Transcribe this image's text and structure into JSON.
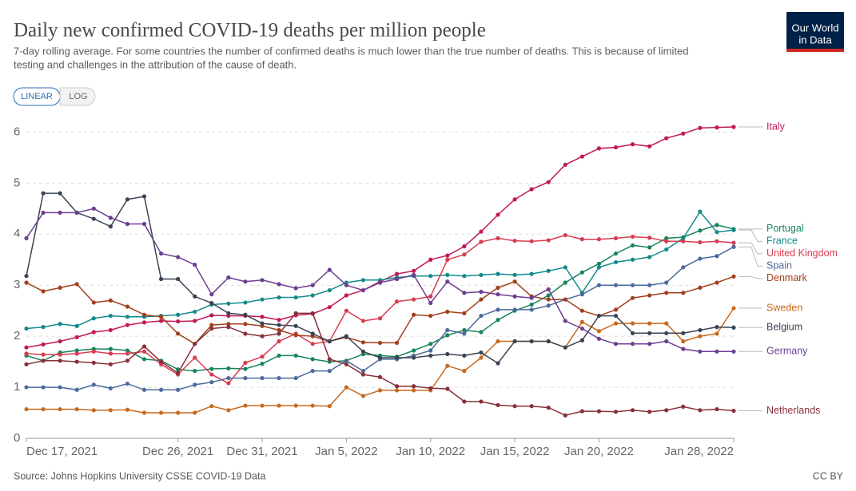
{
  "chart_data": {
    "type": "line",
    "title": "Daily new confirmed COVID-19 deaths per million people",
    "subtitle": [
      "7-day rolling average. For some countries the number of confirmed deaths is much lower than the true number of deaths. This is because of limited",
      "testing and challenges in the attribution of the cause of death."
    ],
    "buttons": [
      "LINEAR",
      "LOG"
    ],
    "logo": [
      "Our World",
      "in Data"
    ],
    "source": "Source: Johns Hopkins University CSSE COVID-19 Data",
    "license": "CC BY",
    "x": [
      "2021-12-17",
      "2021-12-18",
      "2021-12-19",
      "2021-12-20",
      "2021-12-21",
      "2021-12-22",
      "2021-12-23",
      "2021-12-24",
      "2021-12-25",
      "2021-12-26",
      "2021-12-27",
      "2021-12-28",
      "2021-12-29",
      "2021-12-30",
      "2021-12-31",
      "2022-01-01",
      "2022-01-02",
      "2022-01-03",
      "2022-01-04",
      "2022-01-05",
      "2022-01-06",
      "2022-01-07",
      "2022-01-08",
      "2022-01-09",
      "2022-01-10",
      "2022-01-11",
      "2022-01-12",
      "2022-01-13",
      "2022-01-14",
      "2022-01-15",
      "2022-01-16",
      "2022-01-17",
      "2022-01-18",
      "2022-01-19",
      "2022-01-20",
      "2022-01-21",
      "2022-01-22",
      "2022-01-23",
      "2022-01-24",
      "2022-01-25",
      "2022-01-26",
      "2022-01-27",
      "2022-01-28"
    ],
    "xlim": [
      "2021-12-17",
      "2022-01-28"
    ],
    "xticks": [
      {
        "value": "2021-12-17",
        "label": "Dec 17, 2021"
      },
      {
        "value": "2021-12-26",
        "label": "Dec 26, 2021"
      },
      {
        "value": "2021-12-31",
        "label": "Dec 31, 2021"
      },
      {
        "value": "2022-01-05",
        "label": "Jan 5, 2022"
      },
      {
        "value": "2022-01-10",
        "label": "Jan 10, 2022"
      },
      {
        "value": "2022-01-15",
        "label": "Jan 15, 2022"
      },
      {
        "value": "2022-01-20",
        "label": "Jan 20, 2022"
      },
      {
        "value": "2022-01-28",
        "label": "Jan 28, 2022"
      }
    ],
    "ylim": [
      0,
      6.1
    ],
    "yticks": [
      0,
      1,
      2,
      3,
      4,
      5,
      6
    ],
    "grid": true,
    "series": [
      {
        "name": "Italy",
        "color": "#c2185b",
        "values": [
          1.78,
          1.84,
          1.9,
          1.98,
          2.08,
          2.12,
          2.22,
          2.27,
          2.3,
          2.29,
          2.3,
          2.41,
          2.4,
          2.4,
          2.38,
          2.32,
          2.41,
          2.44,
          2.57,
          2.8,
          2.9,
          3.07,
          3.22,
          3.28,
          3.5,
          3.58,
          3.76,
          4.05,
          4.38,
          4.68,
          4.88,
          5.02,
          5.36,
          5.52,
          5.68,
          5.7,
          5.76,
          5.72,
          5.88,
          5.97,
          6.08,
          6.09,
          6.1
        ]
      },
      {
        "name": "Portugal",
        "color": "#18845a",
        "values": [
          1.62,
          1.52,
          1.68,
          1.72,
          1.75,
          1.75,
          1.72,
          1.55,
          1.52,
          1.35,
          1.32,
          1.36,
          1.37,
          1.36,
          1.46,
          1.62,
          1.62,
          1.55,
          1.5,
          1.52,
          1.65,
          1.62,
          1.6,
          1.72,
          1.85,
          2.02,
          2.12,
          2.08,
          2.32,
          2.5,
          2.62,
          2.8,
          3.05,
          3.25,
          3.42,
          3.62,
          3.78,
          3.74,
          3.92,
          3.94,
          4.07,
          4.18,
          4.1
        ]
      },
      {
        "name": "France",
        "color": "#138a8a",
        "values": [
          2.15,
          2.18,
          2.24,
          2.2,
          2.35,
          2.4,
          2.38,
          2.38,
          2.4,
          2.42,
          2.48,
          2.62,
          2.64,
          2.66,
          2.72,
          2.76,
          2.76,
          2.8,
          2.9,
          3.05,
          3.1,
          3.1,
          3.15,
          3.18,
          3.18,
          3.2,
          3.18,
          3.2,
          3.22,
          3.2,
          3.22,
          3.28,
          3.35,
          2.85,
          3.35,
          3.45,
          3.5,
          3.55,
          3.7,
          3.92,
          4.44,
          4.04,
          4.08
        ]
      },
      {
        "name": "United Kingdom",
        "color": "#d73c50",
        "values": [
          1.66,
          1.64,
          1.64,
          1.66,
          1.7,
          1.66,
          1.66,
          1.7,
          1.45,
          1.25,
          1.58,
          1.25,
          1.08,
          1.48,
          1.6,
          1.9,
          2.05,
          1.85,
          1.9,
          2.5,
          2.3,
          2.35,
          2.68,
          2.72,
          2.78,
          3.5,
          3.6,
          3.85,
          3.92,
          3.87,
          3.86,
          3.88,
          3.98,
          3.9,
          3.9,
          3.92,
          3.95,
          3.93,
          3.86,
          3.86,
          3.84,
          3.86,
          3.83
        ]
      },
      {
        "name": "Spain",
        "color": "#4c6a9c",
        "values": [
          1.0,
          1.0,
          1.0,
          0.95,
          1.05,
          0.98,
          1.07,
          0.95,
          0.95,
          0.95,
          1.05,
          1.1,
          1.18,
          1.18,
          1.18,
          1.18,
          1.18,
          1.32,
          1.32,
          1.52,
          1.32,
          1.55,
          1.55,
          1.62,
          1.72,
          2.12,
          2.05,
          2.4,
          2.52,
          2.52,
          2.52,
          2.6,
          2.72,
          2.82,
          3.0,
          3.0,
          3.0,
          3.0,
          3.05,
          3.35,
          3.52,
          3.57,
          3.75
        ]
      },
      {
        "name": "Denmark",
        "color": "#a2401c",
        "values": [
          3.05,
          2.88,
          2.95,
          3.02,
          2.66,
          2.7,
          2.58,
          2.42,
          2.38,
          2.05,
          1.85,
          2.22,
          2.24,
          2.24,
          2.2,
          2.12,
          2.02,
          2.0,
          1.9,
          1.98,
          1.88,
          1.87,
          1.87,
          2.42,
          2.4,
          2.48,
          2.45,
          2.72,
          2.95,
          3.07,
          2.78,
          2.72,
          2.72,
          2.5,
          2.4,
          2.52,
          2.75,
          2.8,
          2.85,
          2.85,
          2.95,
          3.05,
          3.17
        ]
      },
      {
        "name": "Sweden",
        "color": "#c8691c",
        "values": [
          0.57,
          0.57,
          0.57,
          0.57,
          0.55,
          0.55,
          0.56,
          0.5,
          0.5,
          0.5,
          0.5,
          0.63,
          0.55,
          0.64,
          0.64,
          0.64,
          0.64,
          0.64,
          0.63,
          1.0,
          0.83,
          0.94,
          0.94,
          0.94,
          0.94,
          1.42,
          1.32,
          1.58,
          1.9,
          1.9,
          1.9,
          1.9,
          1.78,
          2.28,
          2.1,
          2.25,
          2.25,
          2.25,
          2.25,
          1.9,
          2.0,
          2.05,
          2.55
        ]
      },
      {
        "name": "Belgium",
        "color": "#3b4455",
        "values": [
          3.18,
          4.8,
          4.8,
          4.42,
          4.3,
          4.15,
          4.68,
          4.74,
          3.12,
          3.12,
          2.78,
          2.65,
          2.45,
          2.42,
          2.25,
          2.22,
          2.2,
          2.05,
          1.9,
          2.0,
          1.7,
          1.58,
          1.58,
          1.58,
          1.62,
          1.65,
          1.62,
          1.68,
          1.47,
          1.9,
          1.9,
          1.9,
          1.78,
          1.92,
          2.4,
          2.4,
          2.06,
          2.06,
          2.06,
          2.06,
          2.12,
          2.18,
          2.17
        ]
      },
      {
        "name": "Germany",
        "color": "#6d3e91",
        "values": [
          3.92,
          4.42,
          4.42,
          4.42,
          4.5,
          4.32,
          4.2,
          4.2,
          3.62,
          3.55,
          3.4,
          2.82,
          3.15,
          3.07,
          3.1,
          3.02,
          2.94,
          3.0,
          3.3,
          3.0,
          2.9,
          3.05,
          3.12,
          3.2,
          2.65,
          3.07,
          2.85,
          2.87,
          2.82,
          2.78,
          2.75,
          2.92,
          2.3,
          2.15,
          1.95,
          1.85,
          1.85,
          1.85,
          1.9,
          1.75,
          1.7,
          1.7,
          1.7
        ]
      },
      {
        "name": "Netherlands",
        "color": "#883039",
        "values": [
          1.45,
          1.52,
          1.52,
          1.5,
          1.48,
          1.45,
          1.52,
          1.8,
          1.5,
          1.28,
          1.85,
          2.15,
          2.18,
          2.05,
          2.0,
          2.05,
          2.45,
          2.45,
          1.55,
          1.45,
          1.25,
          1.2,
          1.02,
          1.02,
          0.98,
          0.97,
          0.72,
          0.72,
          0.65,
          0.63,
          0.63,
          0.6,
          0.45,
          0.53,
          0.53,
          0.52,
          0.55,
          0.52,
          0.55,
          0.62,
          0.55,
          0.57,
          0.54
        ]
      }
    ]
  }
}
